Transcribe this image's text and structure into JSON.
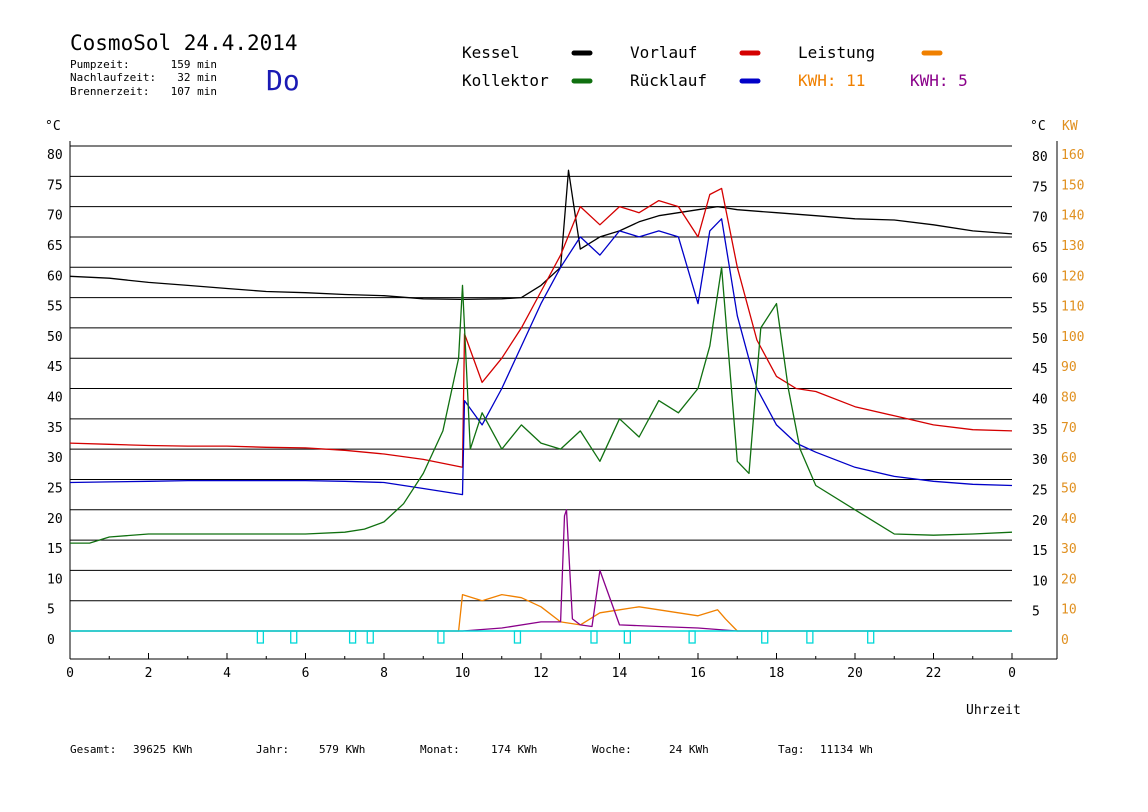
{
  "header": {
    "title": "CosmoSol 24.4.2014",
    "day": "Do",
    "stats": [
      {
        "label": "Pumpzeit:",
        "value": "159 min"
      },
      {
        "label": "Nachlaufzeit:",
        "value": "32 min"
      },
      {
        "label": "Brennerzeit:",
        "value": "107 min"
      }
    ]
  },
  "colors": {
    "kessel": "#000000",
    "vorlauf": "#d40000",
    "ruecklauf": "#0000c8",
    "kollektor": "#107010",
    "leistung": "#f08000",
    "kwh2": "#8a008a",
    "pump": "#00d8d8",
    "day": "#1a1ab4",
    "right_kw_axis": "#e09020"
  },
  "legend": [
    {
      "label": "Kessel",
      "series": "kessel"
    },
    {
      "label": "Vorlauf",
      "series": "vorlauf"
    },
    {
      "label": "Leistung",
      "series": "leistung"
    },
    {
      "label": "Kollektor",
      "series": "kollektor"
    },
    {
      "label": "Rücklauf",
      "series": "ruecklauf"
    },
    {
      "label": "KWH: 11",
      "series": "leistung"
    },
    {
      "label": "KWH: 5",
      "series": "kwh2"
    }
  ],
  "footer": [
    {
      "label": "Gesamt:",
      "value": "39625 KWh"
    },
    {
      "label": "Jahr:",
      "value": "579 KWh"
    },
    {
      "label": "Monat:",
      "value": "174 KWh"
    },
    {
      "label": "Woche:",
      "value": "24 KWh"
    },
    {
      "label": "Tag:",
      "value": "11134 Wh"
    }
  ],
  "chart_data": {
    "type": "line",
    "xlabel": "Uhrzeit",
    "ylabel_left": "°C",
    "ylabel_right": "°C",
    "ylabel_right2": "KW",
    "xlim": [
      0,
      24
    ],
    "ylim": [
      0,
      80
    ],
    "y2lim": [
      0,
      160
    ],
    "x_ticks": [
      "0",
      "2",
      "4",
      "6",
      "8",
      "10",
      "12",
      "14",
      "16",
      "18",
      "20",
      "22",
      "0"
    ],
    "y_ticks": [
      0,
      5,
      10,
      15,
      20,
      25,
      30,
      35,
      40,
      45,
      50,
      55,
      60,
      65,
      70,
      75,
      80
    ],
    "y2_ticks": [
      0,
      10,
      20,
      30,
      40,
      50,
      60,
      70,
      80,
      90,
      100,
      110,
      120,
      130,
      140,
      150,
      160
    ],
    "grid": true,
    "series": [
      {
        "key": "kessel",
        "x": [
          0,
          1,
          2,
          3,
          4,
          5,
          6,
          7,
          8,
          9,
          10,
          11,
          11.5,
          12,
          12.5,
          12.7,
          13,
          13.5,
          14,
          14.5,
          15,
          15.5,
          16,
          16.5,
          17,
          18,
          19,
          20,
          21,
          22,
          23,
          24
        ],
        "values": [
          58.5,
          58.2,
          57.5,
          57,
          56.5,
          56,
          55.8,
          55.5,
          55.3,
          54.8,
          54.7,
          54.8,
          55,
          57,
          60,
          76,
          63,
          65,
          66,
          67.5,
          68.5,
          69,
          69.5,
          70,
          69.5,
          69,
          68.5,
          68,
          67.8,
          67,
          66,
          65.5
        ]
      },
      {
        "key": "vorlauf",
        "x": [
          0,
          1,
          2,
          3,
          4,
          5,
          6,
          7,
          8,
          9,
          10,
          10.05,
          10.5,
          11,
          11.5,
          12,
          12.5,
          13,
          13.5,
          14,
          14.5,
          15,
          15.5,
          16,
          16.3,
          16.6,
          17,
          17.5,
          18,
          18.5,
          19,
          20,
          21,
          22,
          23,
          24
        ],
        "values": [
          31,
          30.8,
          30.6,
          30.5,
          30.5,
          30.3,
          30.2,
          29.8,
          29.2,
          28.3,
          27,
          49,
          41,
          45,
          50,
          56,
          62,
          70,
          67,
          70,
          69,
          71,
          70,
          65,
          72,
          73,
          60,
          48,
          42,
          40,
          39.5,
          37,
          35.5,
          34,
          33.2,
          33
        ]
      },
      {
        "key": "ruecklauf",
        "x": [
          0,
          1,
          2,
          3,
          4,
          5,
          6,
          7,
          8,
          9,
          10,
          10.05,
          10.5,
          11,
          11.5,
          12,
          12.5,
          13,
          13.5,
          14,
          14.5,
          15,
          15.5,
          16,
          16.3,
          16.6,
          17,
          17.5,
          18,
          18.5,
          19,
          20,
          21,
          22,
          23,
          24
        ],
        "values": [
          24.5,
          24.6,
          24.7,
          24.8,
          24.8,
          24.8,
          24.8,
          24.7,
          24.5,
          23.5,
          22.5,
          38,
          34,
          40,
          47,
          54,
          60,
          65,
          62,
          66,
          65,
          66,
          65,
          54,
          66,
          68,
          52,
          40,
          34,
          31,
          29.5,
          27,
          25.5,
          24.7,
          24.2,
          24
        ]
      },
      {
        "key": "kollektor",
        "x": [
          0,
          0.5,
          1,
          2,
          3,
          4,
          5,
          6,
          7,
          7.5,
          8,
          8.5,
          9,
          9.5,
          9.9,
          10,
          10.2,
          10.5,
          11,
          11.5,
          12,
          12.5,
          13,
          13.5,
          14,
          14.5,
          15,
          15.5,
          16,
          16.3,
          16.6,
          17,
          17.3,
          17.6,
          18,
          18.3,
          18.6,
          19,
          20,
          21,
          22,
          23,
          24
        ],
        "values": [
          14.5,
          14.5,
          15.5,
          16,
          16,
          16,
          16,
          16,
          16.3,
          16.8,
          18,
          21,
          26,
          33,
          45,
          57,
          30,
          36,
          30,
          34,
          31,
          30,
          33,
          28,
          35,
          32,
          38,
          36,
          40,
          47,
          60,
          28,
          26,
          50,
          54,
          40,
          30,
          24,
          20,
          16,
          15.8,
          16,
          16.3
        ]
      },
      {
        "key": "leistung",
        "axis": "kw",
        "x": [
          0,
          9.9,
          10,
          10.5,
          11,
          11.5,
          12,
          12.5,
          13,
          13.5,
          14,
          14.5,
          15,
          15.5,
          16,
          16.5,
          16.7,
          17,
          24
        ],
        "values": [
          0,
          0,
          12,
          10,
          12,
          11,
          8,
          3,
          2,
          6,
          7,
          8,
          7,
          6,
          5,
          7,
          4,
          0,
          0
        ]
      },
      {
        "key": "kwh2",
        "axis": "kw",
        "x": [
          0,
          10,
          11,
          12,
          12.5,
          12.6,
          12.65,
          12.8,
          13,
          13.3,
          13.5,
          14,
          15,
          16,
          16.5,
          17,
          24
        ],
        "values": [
          0,
          0,
          1,
          3,
          3,
          38,
          40,
          4,
          2,
          1.5,
          20,
          2,
          1.5,
          1,
          0.5,
          0,
          0
        ]
      }
    ],
    "pump_markers_x": [
      4.85,
      5.7,
      7.2,
      7.65,
      9.45,
      11.4,
      13.35,
      14.2,
      15.85,
      17.7,
      18.85,
      20.4
    ]
  }
}
